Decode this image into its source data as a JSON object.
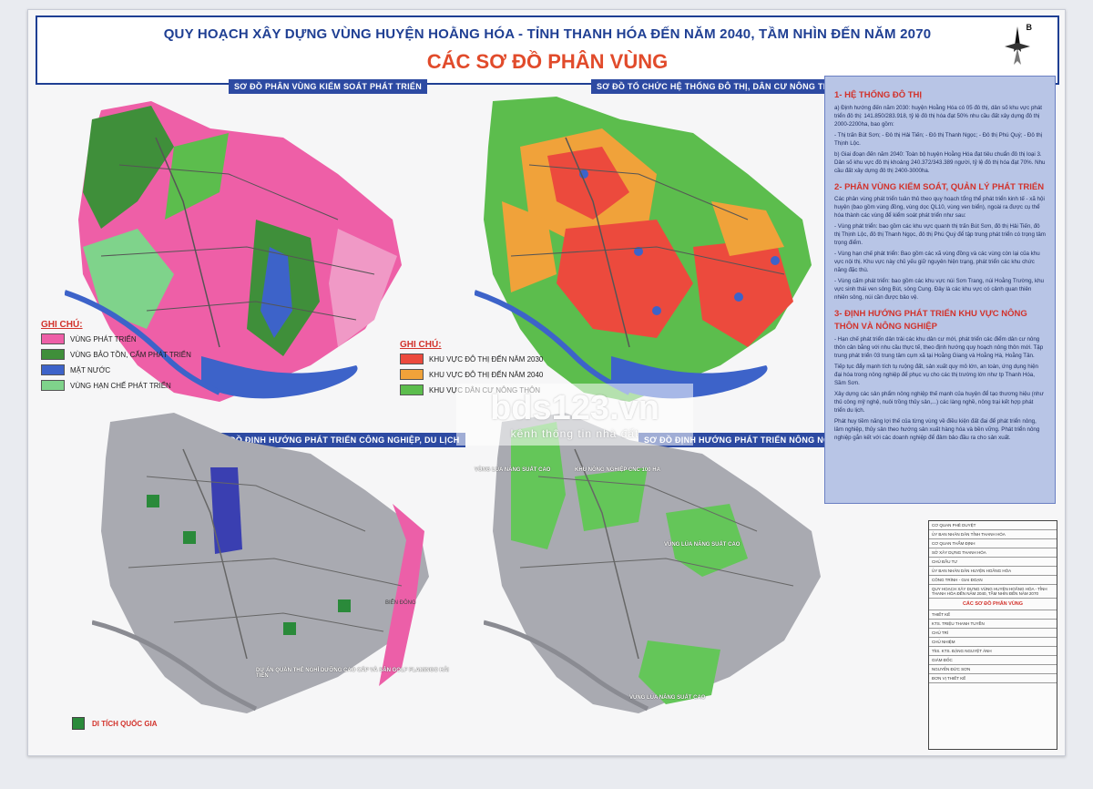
{
  "header": {
    "title": "QUY HOẠCH XÂY DỰNG VÙNG HUYỆN HOẰNG HÓA - TỈNH THANH HÓA ĐẾN NĂM 2040, TẦM NHÌN ĐẾN NĂM 2070",
    "subtitle": "CÁC SƠ ĐỒ PHÂN VÙNG",
    "compass_label": "B"
  },
  "maps": {
    "top_left": {
      "title": "SƠ ĐỒ PHÂN VÙNG KIỂM SOÁT PHÁT TRIỂN"
    },
    "top_right": {
      "title": "SƠ ĐỒ TỔ CHỨC HỆ THỐNG ĐÔ THỊ, DÂN CƯ NÔNG THÔN"
    },
    "bottom_left": {
      "title": "SƠ ĐỒ ĐỊNH HƯỚNG PHÁT TRIỂN CÔNG NGHIỆP, DU LỊCH"
    },
    "bottom_right": {
      "title": "SƠ ĐỒ ĐỊNH HƯỚNG PHÁT TRIỂN NÔNG NGHIỆP"
    }
  },
  "map_labels": {
    "bien_dong": "BIỂN ĐÔNG",
    "nong_nghiep_1": "VÙNG LÚA NĂNG SUẤT CAO",
    "nong_nghiep_2": "KHU NÔNG NGHIỆP CNC 100 HA",
    "nong_nghiep_3": "VÙNG LÚA NĂNG SUẤT CAO",
    "nong_nghiep_4": "VÙNG LÚA NĂNG SUẤT CAO",
    "du_lich": "DỰ ÁN QUẦN THỂ NGHỈ DƯỠNG CAO CẤP VÀ SÂN GOLF FLAMINGO HẢI TIẾN"
  },
  "legend1": {
    "title": "GHI CHÚ:",
    "items": [
      {
        "label": "VÙNG PHÁT TRIỂN",
        "color": "#ee5fa7"
      },
      {
        "label": "VÙNG BẢO TỒN, CẤM PHÁT TRIỂN",
        "color": "#3f8f3a"
      },
      {
        "label": "MẶT NƯỚC",
        "color": "#3d63c9"
      },
      {
        "label": "VÙNG HẠN CHẾ PHÁT TRIỂN",
        "color": "#7fd38b"
      }
    ]
  },
  "legend2": {
    "title": "GHI CHÚ:",
    "items": [
      {
        "label": "KHU VỰC ĐÔ THỊ ĐẾN NĂM 2030",
        "color": "#ec4a3d"
      },
      {
        "label": "KHU VỰC ĐÔ THỊ ĐẾN NĂM 2040",
        "color": "#f0a23a"
      },
      {
        "label": "KHU VỰC DÂN CƯ NÔNG THÔN",
        "color": "#5cbd4d"
      }
    ]
  },
  "bottom_legend": {
    "label": "DI TÍCH QUỐC GIA"
  },
  "text_panel": {
    "h1": "1- HỆ THỐNG ĐÔ THỊ",
    "p1": "a) Định hướng đến năm 2030: huyện Hoằng Hóa có 05 đô thị, dân số khu vực phát triển đô thị: 141.850/283.918, tỷ lệ đô thị hóa đạt 50% nhu cầu đất xây dựng đô thị 2000-2200ha, bao gồm:",
    "p2": "- Thị trấn Bút Sơn; - Đô thị Hải Tiến; - Đô thị Thanh Ngọc; - Đô thị Phú Quý; - Đô thị Thịnh Lộc.",
    "p3": "b) Giai đoạn đến năm 2040: Toàn bộ huyện Hoằng Hóa đạt tiêu chuẩn đô thị loại 3. Dân số khu vực đô thị khoảng 240.372/343.389 người, tỷ lệ đô thị hóa đạt 70%. Nhu cầu đất xây dựng đô thị 2400-3000ha.",
    "h2": "2- PHÂN VÙNG KIỂM SOÁT, QUẢN LÝ PHÁT TRIỂN",
    "p4": "Các phân vùng phát triển tuân thủ theo quy hoạch tổng thể phát triển kinh tế - xã hội huyện (bao gồm vùng đồng, vùng dọc QL10, vùng ven biển), ngoài ra được cụ thể hóa thành các vùng để kiểm soát phát triển như sau:",
    "p5": "- Vùng phát triển: bao gồm các khu vực quanh thị trấn Bút Sơn, đô thị Hải Tiến, đô thị Thịnh Lộc, đô thị Thanh Ngọc, đô thị Phú Quý để tập trung phát triển có trọng tâm trọng điểm.",
    "p6": "- Vùng hạn chế phát triển: Bao gồm các xã vùng đồng và các vùng còn lại của khu vực nội thị. Khu vực này chủ yếu giữ nguyên hiện trạng, phát triển các khu chức năng đặc thù.",
    "p7": "- Vùng cấm phát triển: bao gồm các khu vực núi Sơn Trang, núi Hoằng Trường, khu vực sinh thái ven sông Bút, sông Cung. Đây là các khu vực có cảnh quan thiên nhiên sông, núi cần được bảo vệ.",
    "h3": "3- ĐỊNH HƯỚNG PHÁT TRIỂN KHU VỰC NÔNG THÔN VÀ NÔNG NGHIỆP",
    "p8": "- Hạn chế phát triển dân trải các khu dân cư mới, phát triển các điểm dân cư nông thôn cân bằng với nhu cầu thực tế, theo định hướng quy hoạch nông thôn mới. Tập trung phát triển 03 trung tâm cụm xã tại Hoằng Giang và Hoằng Hà, Hoằng Tân.",
    "p9": "Tiếp tục đẩy mạnh tích tụ ruộng đất, sản xuất quy mô lớn, an toàn, ứng dụng hiện đại hóa trong nông nghiệp để phục vụ cho các thị trường lớn như tp Thanh Hóa, Sầm Sơn.",
    "p10": "Xây dựng các sản phẩm nông nghiệp thế mạnh của huyện để tạo thương hiệu (như thủ công mỹ nghệ, nuôi trồng thủy sản,...) các làng nghề, nông trại kết hợp phát triển du lịch.",
    "p11": "Phát huy tiềm năng lợi thế của từng vùng về điều kiện đất đai để phát triển nông, lâm nghiệp, thủy sản theo hướng sản xuất hàng hóa và bền vững. Phát triển nông nghiệp gắn kết với các doanh nghiệp để đảm bảo đầu ra cho sản xuất."
  },
  "titleblock": {
    "r1": "CƠ QUAN PHÊ DUYỆT",
    "r2": "ỦY BAN NHÂN DÂN TỈNH THANH HÓA",
    "r3": "CƠ QUAN THẨM ĐỊNH",
    "r4": "SỞ XÂY DỰNG THANH HÓA",
    "r5": "CHỦ ĐẦU TƯ",
    "r6": "ỦY BAN NHÂN DÂN HUYỆN HOẰNG HÓA",
    "r7": "CÔNG TRÌNH - GIAI ĐOẠN",
    "r8": "QUY HOẠCH XÂY DỰNG VÙNG HUYỆN HOẰNG HÓA - TỈNH THANH HÓA ĐẾN NĂM 2040, TẦM NHÌN ĐẾN NĂM 2070",
    "r9": "CÁC SƠ ĐỒ PHÂN VÙNG",
    "r10": "THIẾT KẾ",
    "r11": "KTS. TRIỆU THANH TUYỀN",
    "r12": "CHỦ TRÌ",
    "r13": "CHỦ NHIỆM",
    "r14": "ThS. KTS. ĐẶNG NGUYỆT ÁNH",
    "r15": "GIÁM ĐỐC",
    "r16": "NGUYỄN ĐỨC SƠN",
    "r17": "ĐƠN VỊ THIẾT KẾ"
  },
  "watermark": {
    "main": "bds123.vn",
    "sub": "kênh thông tin nhà đất"
  }
}
